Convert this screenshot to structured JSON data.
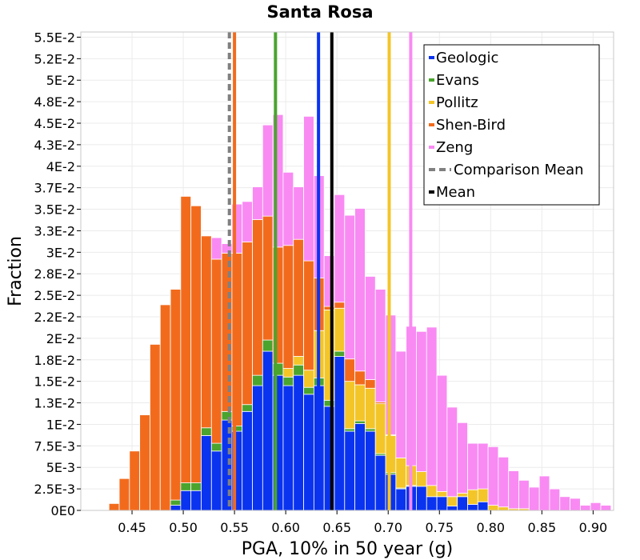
{
  "chart_data": {
    "type": "bar",
    "stacked": true,
    "title": "Santa Rosa",
    "xlabel": "PGA, 10% in 50 year (g)",
    "ylabel": "Fraction",
    "xlim": [
      0.4,
      0.92
    ],
    "ylim": [
      0,
      0.0556
    ],
    "bin_start": 0.4325,
    "bin_width": 0.01,
    "x_ticks": [
      0.45,
      0.5,
      0.55,
      0.6,
      0.65,
      0.7,
      0.75,
      0.8,
      0.85,
      0.9
    ],
    "x_tick_labels": [
      "0.45",
      "0.50",
      "0.55",
      "0.60",
      "0.65",
      "0.70",
      "0.75",
      "0.80",
      "0.85",
      "0.90"
    ],
    "y_ticks": [
      0,
      0.0025,
      0.005,
      0.0075,
      0.01,
      0.0125,
      0.015,
      0.0175,
      0.02,
      0.0225,
      0.025,
      0.0275,
      0.03,
      0.0325,
      0.035,
      0.0375,
      0.04,
      0.0425,
      0.045,
      0.0475,
      0.05,
      0.0525,
      0.055
    ],
    "y_tick_labels": [
      "0E0",
      "2.5E-3",
      "5E-3",
      "7.5E-3",
      "1E-2",
      "1.3E-2",
      "1.5E-2",
      "1.8E-2",
      "2E-2",
      "2.2E-2",
      "2.5E-2",
      "2.8E-2",
      "3E-2",
      "3.3E-2",
      "3.5E-2",
      "3.7E-2",
      "4E-2",
      "4.3E-2",
      "4.5E-2",
      "4.8E-2",
      "5E-2",
      "5.2E-2",
      "5.5E-2"
    ],
    "series": [
      {
        "name": "Geologic",
        "color": "#0a33f0",
        "values": [
          0,
          0,
          0,
          0,
          0,
          0,
          0.0006,
          0.0023,
          0.0023,
          0.0087,
          0.0069,
          0.0105,
          0.0092,
          0.0115,
          0.0145,
          0.0185,
          0.0157,
          0.0145,
          0.0157,
          0.0135,
          0.0145,
          0.0121,
          0.0179,
          0.0092,
          0.0101,
          0.0092,
          0.0064,
          0.0042,
          0.0025,
          0.0028,
          0.0028,
          0.0016,
          0.0016,
          0.0005,
          0.0016,
          0.0007,
          0.001,
          0,
          0,
          0,
          0,
          0,
          0,
          0,
          0,
          0,
          0,
          0,
          0
        ]
      },
      {
        "name": "Evans",
        "color": "#4aa42e",
        "values": [
          0,
          0,
          0,
          0,
          0,
          0,
          0.0006,
          0.0009,
          0.0009,
          0.0009,
          0.0009,
          0.001,
          0.0006,
          0.0008,
          0.0012,
          0.0013,
          0.0014,
          0.001,
          0.0012,
          0.0008,
          0.0009,
          0.0007,
          0.0006,
          0.0003,
          0.0003,
          0.0003,
          0.0002,
          0.0002,
          0.0001,
          0.0001,
          0,
          0,
          0,
          0,
          0,
          0,
          0,
          0,
          0,
          0,
          0,
          0,
          0,
          0,
          0,
          0,
          0,
          0,
          0
        ]
      },
      {
        "name": "Pollitz",
        "color": "#f4c528",
        "values": [
          0,
          0,
          0,
          0,
          0,
          0,
          0,
          0,
          0,
          0,
          0,
          0,
          0,
          0,
          0,
          0,
          0,
          0.001,
          0.001,
          0.002,
          0.0055,
          0.0105,
          0.005,
          0.0055,
          0.0042,
          0.0047,
          0.0058,
          0.0043,
          0.0035,
          0.0023,
          0.0017,
          0.0013,
          0.0006,
          0.0011,
          0.0004,
          0.0017,
          0.0015,
          0.0006,
          0.0004,
          0.0002,
          0.0002,
          0,
          0,
          0,
          0,
          0,
          0,
          0,
          0
        ]
      },
      {
        "name": "Shen-Bird",
        "color": "#f26b1d",
        "values": [
          0.0008,
          0.0037,
          0.0069,
          0.0111,
          0.0193,
          0.0239,
          0.0245,
          0.0333,
          0.0322,
          0.0223,
          0.0214,
          0.0184,
          0.0201,
          0.0189,
          0.0181,
          0.0144,
          0.0135,
          0.0143,
          0.0136,
          0.0127,
          0.0061,
          0.0004,
          0.0007,
          0.0026,
          0.0016,
          0.001,
          0.0002,
          0.0001,
          0,
          0,
          0,
          0,
          0,
          0,
          0,
          0,
          0,
          0,
          0,
          0,
          0,
          0,
          0,
          0,
          0,
          0,
          0,
          0,
          0
        ]
      },
      {
        "name": "Zeng",
        "color": "#f98af3",
        "values": [
          0,
          0,
          0,
          0,
          0,
          0,
          0,
          0,
          0,
          0,
          0.0025,
          0.0011,
          0.0057,
          0.0047,
          0.0038,
          0.0106,
          0.0154,
          0.0085,
          0.0061,
          0.0168,
          0.0119,
          0.0059,
          0.0125,
          0.0167,
          0.0189,
          0.012,
          0.0131,
          0.0139,
          0.0124,
          0.0162,
          0.0163,
          0.0184,
          0.0135,
          0.0104,
          0.0082,
          0.0054,
          0.0053,
          0.0068,
          0.0058,
          0.0044,
          0.0033,
          0.0027,
          0.004,
          0.0025,
          0.0016,
          0.0014,
          0.0006,
          0.0009,
          0.0006
        ]
      }
    ],
    "vlines": [
      {
        "name": "Geologic",
        "x": 0.632,
        "color": "#0a33f0",
        "style": "solid"
      },
      {
        "name": "Evans",
        "x": 0.59,
        "color": "#4aa42e",
        "style": "solid"
      },
      {
        "name": "Pollitz",
        "x": 0.701,
        "color": "#f4c528",
        "style": "solid"
      },
      {
        "name": "Shen-Bird",
        "x": 0.55,
        "color": "#f26b1d",
        "style": "solid"
      },
      {
        "name": "Zeng",
        "x": 0.722,
        "color": "#f98af3",
        "style": "solid"
      },
      {
        "name": "Comparison Mean",
        "x": 0.545,
        "color": "#808080",
        "style": "dashed"
      },
      {
        "name": "Mean",
        "x": 0.645,
        "color": "#000000",
        "style": "solid"
      }
    ],
    "legend": {
      "position": "top-right",
      "entries": [
        {
          "label": "Geologic",
          "color": "#0a33f0",
          "style": "solid"
        },
        {
          "label": "Evans",
          "color": "#4aa42e",
          "style": "solid"
        },
        {
          "label": "Pollitz",
          "color": "#f4c528",
          "style": "solid"
        },
        {
          "label": "Shen-Bird",
          "color": "#f26b1d",
          "style": "solid"
        },
        {
          "label": "Zeng",
          "color": "#f98af3",
          "style": "solid"
        },
        {
          "label": "Comparison Mean",
          "color": "#808080",
          "style": "dashed"
        },
        {
          "label": "Mean",
          "color": "#000000",
          "style": "solid"
        }
      ]
    },
    "grid": true
  }
}
